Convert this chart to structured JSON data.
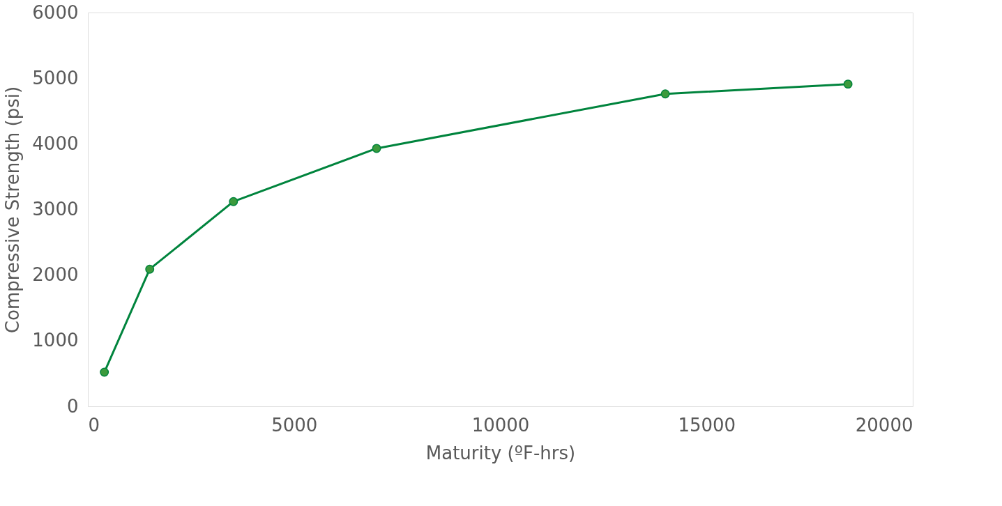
{
  "chart_data": {
    "type": "line",
    "xlabel": "Maturity (ºF-hrs)",
    "ylabel": "Compressive Strength (psi)",
    "x": [
      400,
      1500,
      3530,
      7000,
      14000,
      18430
    ],
    "series": [
      {
        "color": "#00843d",
        "values": [
          520,
          2090,
          3120,
          3930,
          4760,
          4910
        ]
      }
    ],
    "xlim": [
      0,
      20000
    ],
    "xticks": [
      0,
      5000,
      10000,
      15000,
      20000
    ],
    "ylim": [
      0,
      6000
    ],
    "yticks": [
      0,
      1000,
      2000,
      3000,
      4000,
      5000,
      6000
    ],
    "grid": false,
    "marker": "circle",
    "line_style": "solid"
  }
}
